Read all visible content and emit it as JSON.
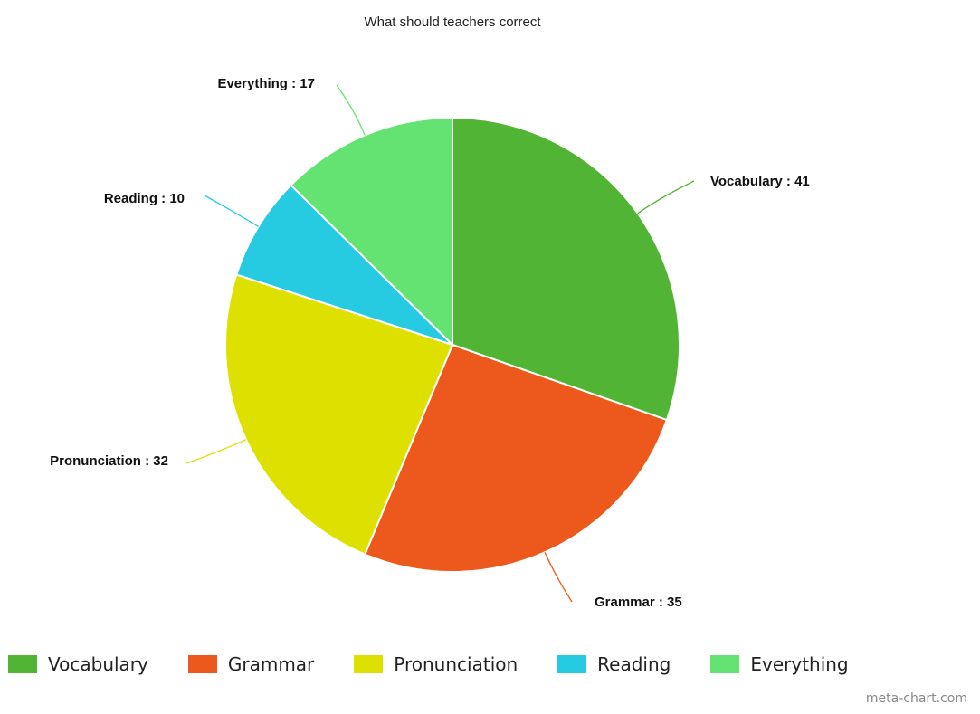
{
  "chart_data": {
    "type": "pie",
    "title": "What should teachers correct",
    "categories": [
      "Vocabulary",
      "Grammar",
      "Pronunciation",
      "Reading",
      "Everything"
    ],
    "values": [
      41,
      35,
      32,
      10,
      17
    ],
    "colors": [
      "#52b435",
      "#ed581d",
      "#dee000",
      "#26cbe2",
      "#64e372"
    ],
    "data_labels": [
      "Vocabulary : 41",
      "Grammar : 35",
      "Pronunciation : 32",
      "Reading : 10",
      "Everything : 17"
    ],
    "legend_position": "bottom"
  },
  "credit": "meta-chart.com"
}
